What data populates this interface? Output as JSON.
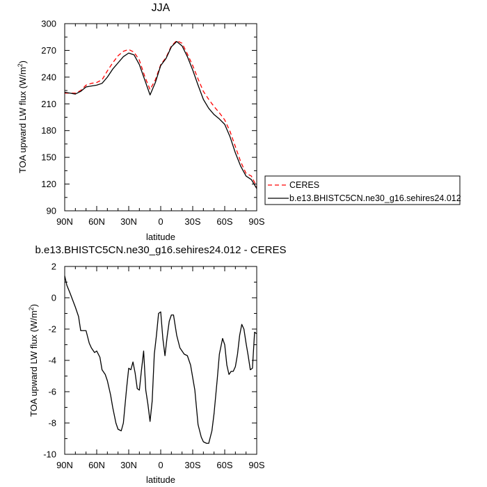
{
  "chart_data": [
    {
      "type": "line",
      "title": "JJA",
      "xlabel": "latitude",
      "ylabel": "TOA upward LW flux (W/m",
      "ylabel_sup": "2",
      "ylabel_tail": ")",
      "xlim": [
        90,
        -90
      ],
      "ylim": [
        90,
        300
      ],
      "x_ticks": [
        90,
        60,
        30,
        0,
        -30,
        -60,
        -90
      ],
      "x_tick_labels": [
        "90N",
        "60N",
        "30N",
        "0",
        "30S",
        "60S",
        "90S"
      ],
      "y_ticks": [
        90,
        120,
        150,
        180,
        210,
        240,
        270,
        300
      ],
      "y_tick_labels": [
        "90",
        "120",
        "150",
        "180",
        "210",
        "240",
        "270",
        "300"
      ],
      "grid": false,
      "legend_position": "right, outside plot",
      "series": [
        {
          "name": "CERES",
          "color": "#ff0000",
          "dash": "dashed",
          "x": [
            90,
            85,
            80,
            75,
            70,
            65,
            60,
            55,
            50,
            45,
            40,
            35,
            30,
            25,
            20,
            15,
            10,
            5,
            0,
            -5,
            -10,
            -15,
            -20,
            -25,
            -30,
            -35,
            -40,
            -45,
            -50,
            -55,
            -60,
            -65,
            -70,
            -75,
            -80,
            -85,
            -90
          ],
          "values": [
            222,
            222,
            222,
            225,
            231,
            233,
            234,
            237,
            247,
            256,
            264,
            269,
            271,
            268,
            259,
            241,
            226,
            237,
            254,
            262,
            275,
            281,
            278,
            266,
            253,
            238,
            224,
            215,
            207,
            200,
            192,
            179,
            162,
            145,
            132,
            129,
            117
          ]
        },
        {
          "name": "b.e13.BHISTC5CN.ne30_g16.sehires24.012",
          "color": "#000000",
          "dash": "solid",
          "x": [
            90,
            85,
            80,
            75,
            70,
            65,
            60,
            55,
            50,
            45,
            40,
            35,
            30,
            25,
            20,
            15,
            10,
            5,
            0,
            -5,
            -10,
            -15,
            -20,
            -25,
            -30,
            -35,
            -40,
            -45,
            -50,
            -55,
            -60,
            -65,
            -70,
            -75,
            -80,
            -85,
            -90
          ],
          "values": [
            223,
            222,
            221,
            224,
            229,
            230,
            231,
            233,
            240,
            249,
            256,
            263,
            267,
            265,
            254,
            237,
            220,
            234,
            253,
            261,
            274,
            280,
            275,
            263,
            248,
            231,
            215,
            205,
            198,
            193,
            187,
            173,
            155,
            140,
            129,
            125,
            115
          ]
        }
      ]
    },
    {
      "type": "line",
      "title": "b.e13.BHISTC5CN.ne30_g16.sehires24.012 - CERES",
      "xlabel": "latitude",
      "ylabel": "TOA upward LW flux (W/m",
      "ylabel_sup": "2",
      "ylabel_tail": ")",
      "xlim": [
        90,
        -90
      ],
      "ylim": [
        -10,
        2
      ],
      "x_ticks": [
        90,
        60,
        30,
        0,
        -30,
        -60,
        -90
      ],
      "x_tick_labels": [
        "90N",
        "60N",
        "30N",
        "0",
        "30S",
        "60S",
        "90S"
      ],
      "y_ticks": [
        -10,
        -8,
        -6,
        -4,
        -2,
        0,
        2
      ],
      "y_tick_labels": [
        "-10",
        "-8",
        "-6",
        "-4",
        "-2",
        "0",
        "2"
      ],
      "grid": false,
      "series": [
        {
          "color": "#000000",
          "dash": "solid",
          "x": [
            90,
            88,
            85,
            80,
            77,
            75,
            72,
            70,
            67,
            65,
            62,
            60,
            57,
            55,
            52,
            50,
            47,
            45,
            42,
            40,
            37,
            35,
            32,
            30,
            28,
            26,
            24,
            22,
            20,
            18,
            16,
            14,
            12,
            10,
            8,
            6,
            4,
            2,
            0,
            -2,
            -4,
            -6,
            -8,
            -10,
            -12,
            -15,
            -18,
            -20,
            -22,
            -25,
            -28,
            -30,
            -32,
            -35,
            -38,
            -40,
            -43,
            -45,
            -48,
            -50,
            -53,
            -55,
            -58,
            -60,
            -62,
            -64,
            -66,
            -68,
            -70,
            -72,
            -74,
            -76,
            -78,
            -80,
            -82,
            -84,
            -86,
            -88,
            -90
          ],
          "values": [
            1.4,
            0.8,
            0.3,
            -0.6,
            -1.2,
            -2.1,
            -2.1,
            -2.1,
            -2.9,
            -3.2,
            -3.5,
            -3.4,
            -3.8,
            -4.6,
            -4.9,
            -5.3,
            -6.2,
            -7.0,
            -8.0,
            -8.4,
            -8.5,
            -8.0,
            -5.8,
            -4.5,
            -4.6,
            -4.1,
            -4.8,
            -5.8,
            -5.9,
            -4.6,
            -3.4,
            -5.9,
            -6.8,
            -7.9,
            -6.6,
            -3.6,
            -2.4,
            -1.0,
            -0.9,
            -2.6,
            -3.7,
            -2.5,
            -1.5,
            -1.1,
            -1.1,
            -2.4,
            -3.2,
            -3.4,
            -3.6,
            -3.7,
            -4.3,
            -5.1,
            -5.9,
            -8.1,
            -8.9,
            -9.2,
            -9.3,
            -9.3,
            -8.5,
            -7.4,
            -5.2,
            -3.6,
            -2.6,
            -3.0,
            -4.3,
            -4.9,
            -4.7,
            -4.7,
            -4.4,
            -3.6,
            -2.4,
            -1.7,
            -2.0,
            -2.9,
            -3.7,
            -4.6,
            -4.5,
            -2.2,
            -2.3
          ]
        }
      ]
    }
  ]
}
